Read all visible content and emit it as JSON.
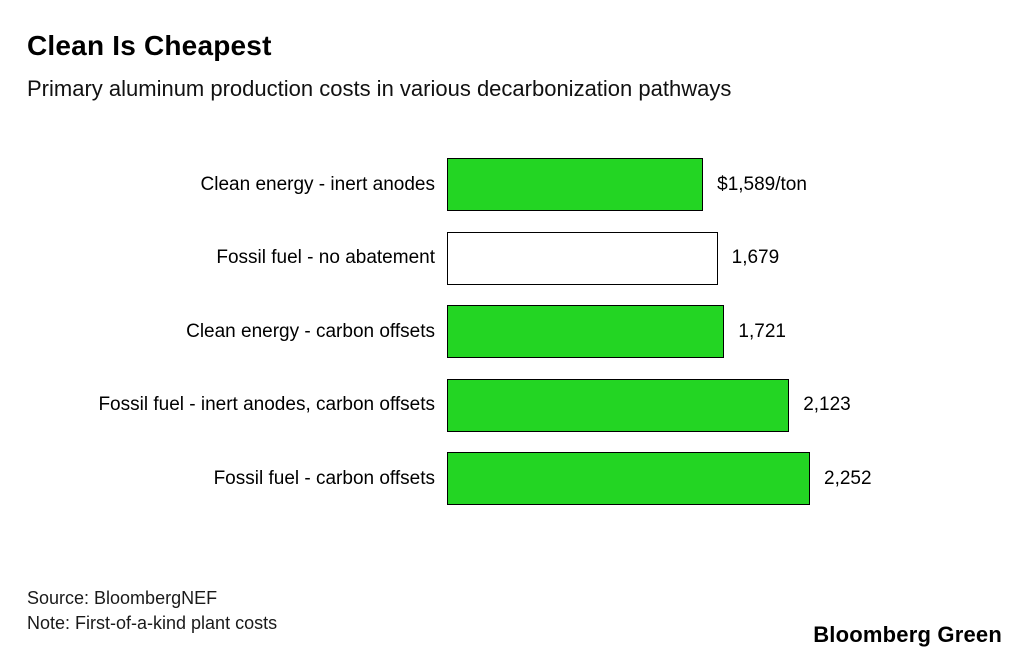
{
  "header": {
    "title": "Clean Is Cheapest",
    "subtitle": "Primary aluminum production costs in various decarbonization pathways"
  },
  "chart_data": {
    "type": "bar",
    "orientation": "horizontal",
    "title": "Clean Is Cheapest",
    "subtitle": "Primary aluminum production costs in various decarbonization pathways",
    "unit": "$/ton",
    "categories": [
      "Clean energy - inert anodes",
      "Fossil fuel - no abatement",
      "Clean energy - carbon offsets",
      "Fossil fuel - inert anodes, carbon offsets",
      "Fossil fuel - carbon offsets"
    ],
    "values": [
      1589,
      1679,
      1721,
      2123,
      2252
    ],
    "value_labels": [
      "$1,589/ton",
      "1,679",
      "1,721",
      "2,123",
      "2,252"
    ],
    "bar_fills": [
      "#23D523",
      "#FFFFFF",
      "#23D523",
      "#23D523",
      "#23D523"
    ],
    "colors": {
      "green": "#23D523",
      "outline": "#000000",
      "background": "#FFFFFF"
    },
    "xlim": [
      0,
      2252
    ],
    "grid": false,
    "legend": "none"
  },
  "footer": {
    "source": "Source: BloombergNEF",
    "note": "Note: First-of-a-kind plant costs",
    "brand": "Bloomberg Green"
  }
}
